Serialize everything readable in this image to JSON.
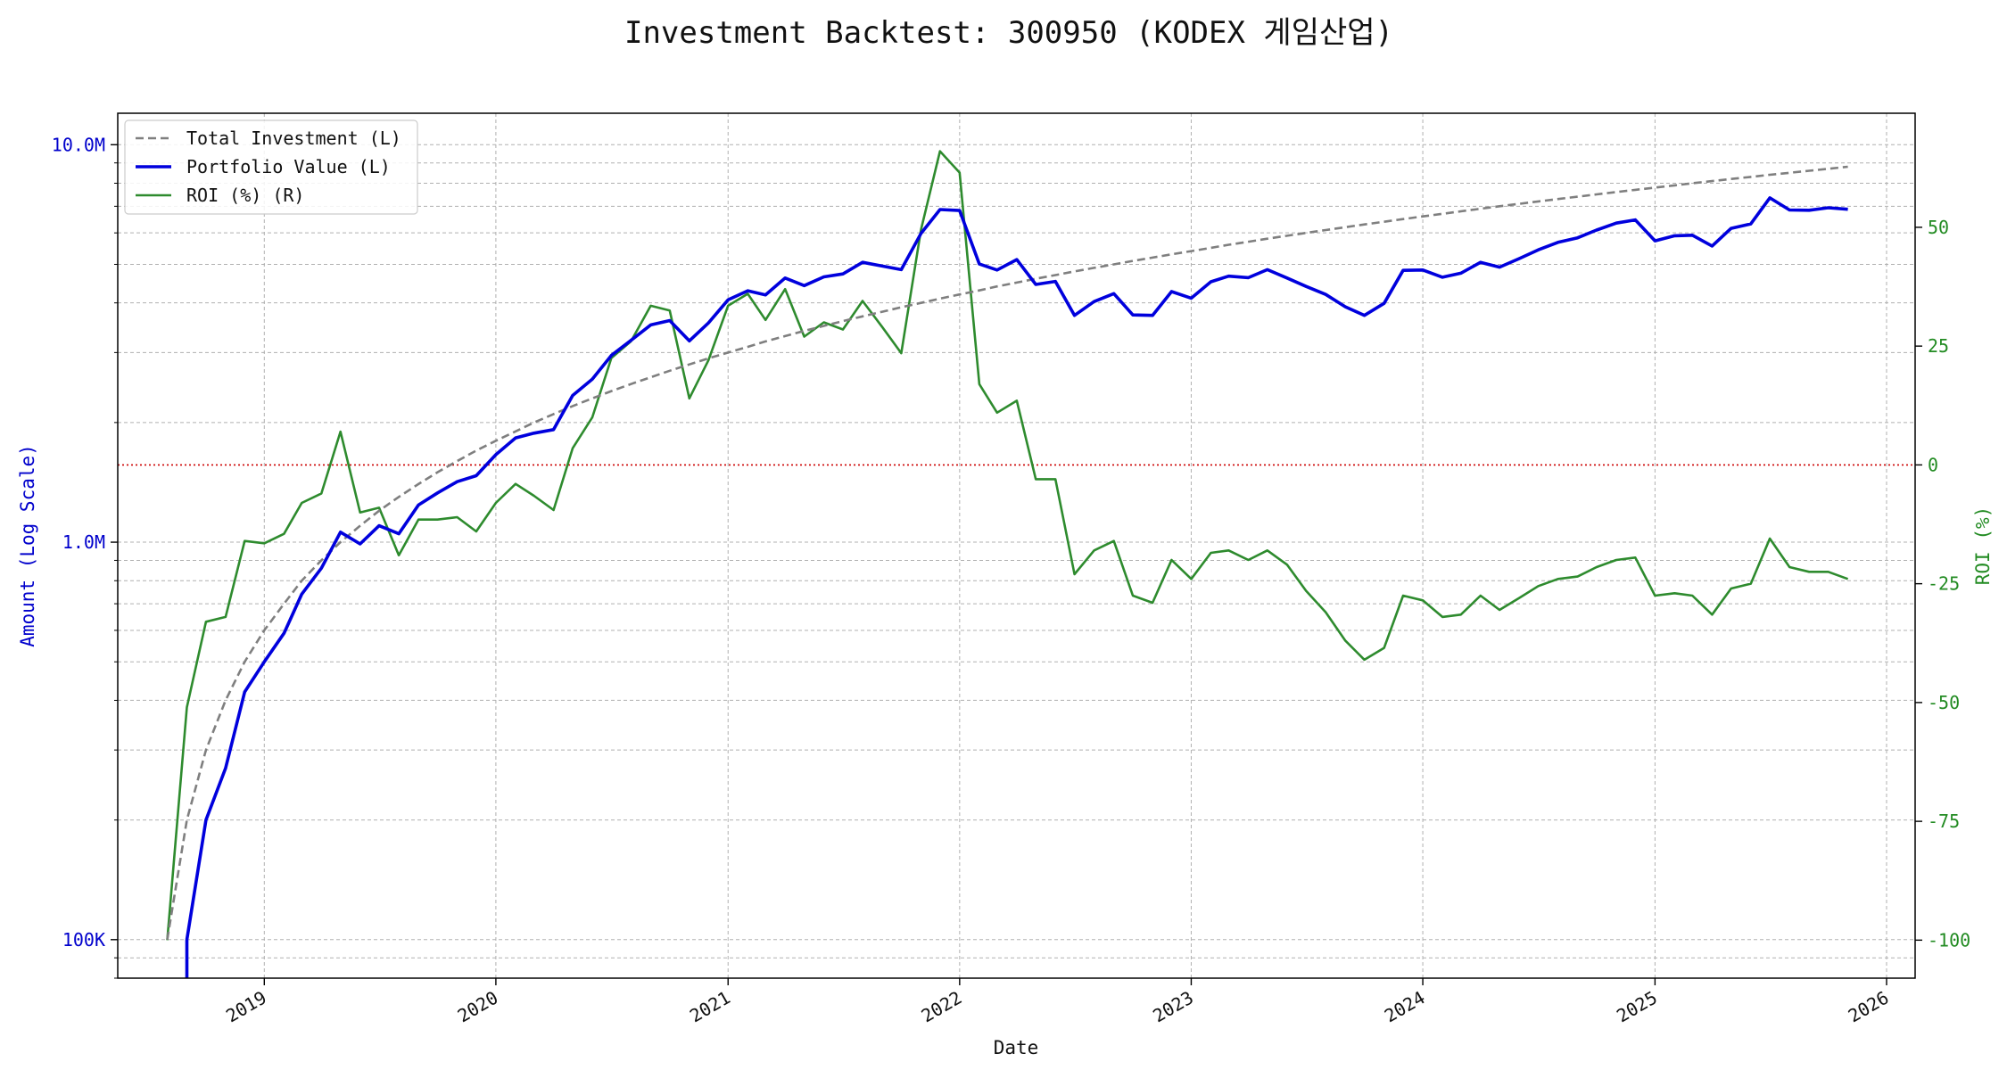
{
  "chart_data": {
    "type": "line",
    "title": "Investment Backtest: 300950 (KODEX 게임산업)",
    "xlabel": "Date",
    "ylabel_left": "Amount (Log Scale)",
    "ylabel_right": "ROI (%)",
    "y_left_scale": "log",
    "y_left_ticks": [
      {
        "value": 100000,
        "label": "100K"
      },
      {
        "value": 1000000,
        "label": "1.0M"
      },
      {
        "value": 10000000,
        "label": "10.0M"
      }
    ],
    "y_left_range": [
      80000,
      12000000
    ],
    "y_right_range": [
      -108,
      74
    ],
    "y_right_ticks": [
      50,
      25,
      0,
      -25,
      -50,
      -75,
      -100
    ],
    "x_range": [
      "2018-05-15",
      "2026-02-15"
    ],
    "x_ticks": [
      "2019",
      "2020",
      "2021",
      "2022",
      "2023",
      "2024",
      "2025",
      "2026"
    ],
    "grid": true,
    "legend_position": "top-left",
    "colors": {
      "investment": "#7f7f7f",
      "portfolio": "#0000dd",
      "roi": "#2e8b2e",
      "zero_line": "#cc0000",
      "left_axis": "#0000cc",
      "right_axis": "#228b22"
    },
    "x": [
      "2018-08-01",
      "2018-09-01",
      "2018-10-01",
      "2018-11-01",
      "2018-12-01",
      "2019-01-01",
      "2019-02-01",
      "2019-03-01",
      "2019-04-01",
      "2019-05-01",
      "2019-06-01",
      "2019-07-01",
      "2019-08-01",
      "2019-09-01",
      "2019-10-01",
      "2019-11-01",
      "2019-12-01",
      "2020-01-01",
      "2020-02-01",
      "2020-03-01",
      "2020-04-01",
      "2020-05-01",
      "2020-06-01",
      "2020-07-01",
      "2020-08-01",
      "2020-09-01",
      "2020-10-01",
      "2020-11-01",
      "2020-12-01",
      "2021-01-01",
      "2021-02-01",
      "2021-03-01",
      "2021-04-01",
      "2021-05-01",
      "2021-06-01",
      "2021-07-01",
      "2021-08-01",
      "2021-09-01",
      "2021-10-01",
      "2021-11-01",
      "2021-12-01",
      "2022-01-01",
      "2022-02-01",
      "2022-03-01",
      "2022-04-01",
      "2022-05-01",
      "2022-06-01",
      "2022-07-01",
      "2022-08-01",
      "2022-09-01",
      "2022-10-01",
      "2022-11-01",
      "2022-12-01",
      "2023-01-01",
      "2023-02-01",
      "2023-03-01",
      "2023-04-01",
      "2023-05-01",
      "2023-06-01",
      "2023-07-01",
      "2023-08-01",
      "2023-09-01",
      "2023-10-01",
      "2023-11-01",
      "2023-12-01",
      "2024-01-01",
      "2024-02-01",
      "2024-03-01",
      "2024-04-01",
      "2024-05-01",
      "2024-06-01",
      "2024-07-01",
      "2024-08-01",
      "2024-09-01",
      "2024-10-01",
      "2024-11-01",
      "2024-12-01",
      "2025-01-01",
      "2025-02-01",
      "2025-03-01",
      "2025-04-01",
      "2025-05-01",
      "2025-06-01",
      "2025-07-01",
      "2025-08-01",
      "2025-09-01",
      "2025-10-01",
      "2025-11-01"
    ],
    "series": [
      {
        "name": "Total Investment (L)",
        "axis": "left",
        "style": "dashed",
        "values": [
          100000,
          200000,
          300000,
          400000,
          500000,
          600000,
          700000,
          800000,
          900000,
          1000000,
          1100000,
          1200000,
          1300000,
          1400000,
          1500000,
          1600000,
          1700000,
          1800000,
          1900000,
          2000000,
          2100000,
          2200000,
          2300000,
          2400000,
          2500000,
          2600000,
          2700000,
          2800000,
          2900000,
          3000000,
          3100000,
          3200000,
          3300000,
          3400000,
          3500000,
          3600000,
          3700000,
          3800000,
          3900000,
          4000000,
          4100000,
          4200000,
          4300000,
          4400000,
          4500000,
          4600000,
          4700000,
          4800000,
          4900000,
          5000000,
          5100000,
          5200000,
          5300000,
          5400000,
          5500000,
          5600000,
          5700000,
          5800000,
          5900000,
          6000000,
          6100000,
          6200000,
          6300000,
          6400000,
          6500000,
          6600000,
          6700000,
          6800000,
          6900000,
          7000000,
          7100000,
          7200000,
          7300000,
          7400000,
          7500000,
          7600000,
          7700000,
          7800000,
          7900000,
          8000000,
          8100000,
          8200000,
          8300000,
          8400000,
          8500000,
          8600000,
          8700000,
          8800000
        ]
      },
      {
        "name": "Portfolio Value (L)",
        "axis": "left",
        "style": "solid",
        "values": [
          null,
          100000,
          200000,
          270000,
          420000,
          500000,
          590000,
          740000,
          860000,
          1060000,
          990000,
          1100000,
          1050000,
          1240000,
          1330000,
          1420000,
          1470000,
          1660000,
          1830000,
          1880000,
          1920000,
          2340000,
          2570000,
          2950000,
          3220000,
          3520000,
          3610000,
          3210000,
          3560000,
          4070000,
          4290000,
          4190000,
          4620000,
          4420000,
          4650000,
          4730000,
          5060000,
          4950000,
          4850000,
          5980000,
          6870000,
          6830000,
          5010000,
          4840000,
          5140000,
          4450000,
          4530000,
          3720000,
          4030000,
          4220000,
          3730000,
          3720000,
          4270000,
          4110000,
          4520000,
          4670000,
          4630000,
          4850000,
          4620000,
          4400000,
          4200000,
          3910000,
          3720000,
          3990000,
          4830000,
          4840000,
          4640000,
          4750000,
          5060000,
          4920000,
          5170000,
          5440000,
          5680000,
          5830000,
          6100000,
          6350000,
          6470000,
          5730000,
          5900000,
          5920000,
          5560000,
          6160000,
          6320000,
          7350000,
          6850000,
          6840000,
          6940000,
          6880000
        ]
      },
      {
        "name": "ROI (%) (R)",
        "axis": "right",
        "style": "solid",
        "values": [
          -100,
          -51,
          -33,
          -32,
          -16,
          -16.5,
          -14.5,
          -8,
          -6,
          7,
          -10,
          -9,
          -19,
          -11.5,
          -11.5,
          -11,
          -14,
          -8,
          -4,
          -6.5,
          -9.5,
          3.5,
          10,
          22.5,
          26,
          33.5,
          32.5,
          14,
          22,
          33.5,
          36,
          30.5,
          37,
          27,
          30,
          28.5,
          34.5,
          29,
          23.5,
          49.5,
          66,
          61.5,
          17,
          11,
          13.5,
          -3,
          -3,
          -23,
          -18,
          -16,
          -27.5,
          -29,
          -20,
          -24,
          -18.5,
          -18,
          -20,
          -18,
          -21,
          -26.5,
          -31,
          -37,
          -41,
          -38.5,
          -27.5,
          -28.5,
          -32,
          -31.5,
          -27.5,
          -30.5,
          -28,
          -25.5,
          -24,
          -23.5,
          -21.5,
          -20,
          -19.5,
          -27.5,
          -27,
          -27.5,
          -31.5,
          -26,
          -25,
          -15.5,
          -21.5,
          -22.5,
          -22.5,
          -24
        ]
      }
    ]
  }
}
